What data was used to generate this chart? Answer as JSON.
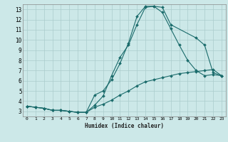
{
  "xlabel": "Humidex (Indice chaleur)",
  "background_color": "#cce8e8",
  "grid_color": "#aacccc",
  "line_color": "#1a6b6b",
  "xlim": [
    -0.5,
    23.5
  ],
  "ylim": [
    2.5,
    13.5
  ],
  "line1_x": [
    0,
    1,
    2,
    3,
    4,
    5,
    6,
    7,
    8,
    9,
    10,
    11,
    12,
    13,
    14,
    15,
    16,
    17,
    18,
    19,
    20,
    21,
    22,
    23
  ],
  "line1_y": [
    3.5,
    3.4,
    3.3,
    3.1,
    3.1,
    3.0,
    2.9,
    2.9,
    3.4,
    3.7,
    4.1,
    4.6,
    5.0,
    5.5,
    5.9,
    6.1,
    6.3,
    6.5,
    6.7,
    6.8,
    6.9,
    7.0,
    7.1,
    6.5
  ],
  "line2_x": [
    0,
    1,
    2,
    3,
    4,
    5,
    6,
    7,
    8,
    9,
    10,
    11,
    12,
    13,
    14,
    15,
    16,
    17,
    18,
    19,
    20,
    21,
    22,
    23
  ],
  "line2_y": [
    3.5,
    3.4,
    3.3,
    3.1,
    3.1,
    3.0,
    2.9,
    2.9,
    4.6,
    5.0,
    6.1,
    7.7,
    9.7,
    12.3,
    13.3,
    13.3,
    12.7,
    11.1,
    9.5,
    8.0,
    7.0,
    6.5,
    6.6,
    6.5
  ],
  "line3_x": [
    0,
    1,
    2,
    3,
    4,
    5,
    6,
    7,
    8,
    9,
    10,
    11,
    12,
    13,
    14,
    15,
    16,
    17,
    20,
    21,
    22,
    23
  ],
  "line3_y": [
    3.5,
    3.4,
    3.3,
    3.1,
    3.1,
    3.0,
    2.9,
    2.9,
    3.6,
    4.5,
    6.5,
    8.3,
    9.5,
    11.5,
    13.2,
    13.3,
    13.2,
    11.5,
    10.2,
    9.5,
    6.8,
    6.5
  ],
  "yticks": [
    3,
    4,
    5,
    6,
    7,
    8,
    9,
    10,
    11,
    12,
    13
  ],
  "xticks": [
    0,
    1,
    2,
    3,
    4,
    5,
    6,
    7,
    8,
    9,
    10,
    11,
    12,
    13,
    14,
    15,
    16,
    17,
    18,
    19,
    20,
    21,
    22,
    23
  ]
}
